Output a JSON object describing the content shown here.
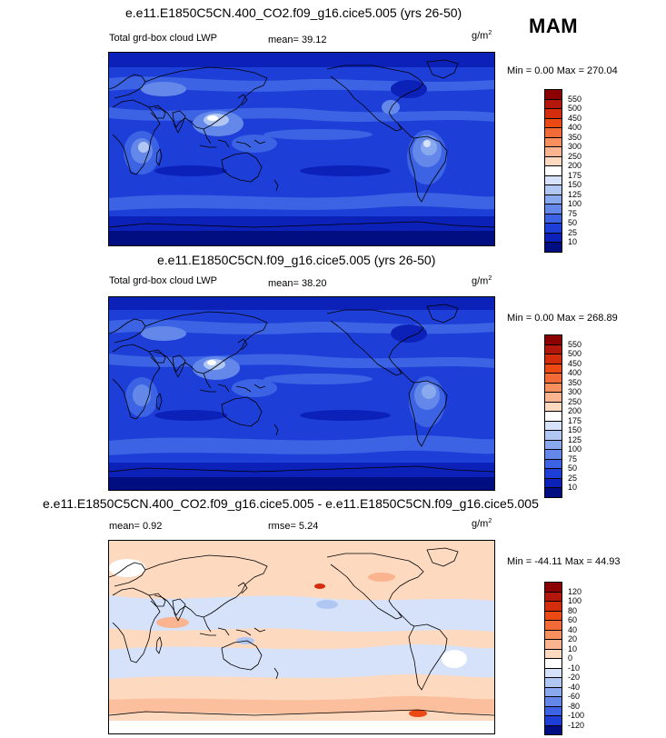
{
  "season": "MAM",
  "panels": [
    {
      "title": "e.e11.E1850C5CN.400_CO2.f09_g16.cice5.005 (yrs 26-50)",
      "left_label": "Total grd-box cloud LWP",
      "center_label": "mean=  39.12",
      "units": "g/m",
      "units_exp": "2",
      "minmax": "Min =   0.00 Max = 270.04",
      "colorbar": {
        "labels": [
          "550",
          "500",
          "450",
          "400",
          "350",
          "300",
          "250",
          "200",
          "175",
          "150",
          "125",
          "100",
          "75",
          "50",
          "25",
          "10"
        ],
        "colors": [
          "#8b0000",
          "#b3160a",
          "#d42d0d",
          "#ec4a14",
          "#f26a38",
          "#f78f5e",
          "#fab48f",
          "#fdd9c0",
          "#ffffff",
          "#d6e2fa",
          "#b0c7f4",
          "#89a9ef",
          "#6488ea",
          "#3b63e3",
          "#1d3fd8",
          "#0b21b8",
          "#000e82"
        ]
      },
      "palette": "lwp"
    },
    {
      "title": "e.e11.E1850C5CN.f09_g16.cice5.005 (yrs 26-50)",
      "left_label": "Total grd-box cloud LWP",
      "center_label": "mean=  38.20",
      "units": "g/m",
      "units_exp": "2",
      "minmax": "Min =   0.00 Max = 268.89",
      "colorbar": {
        "labels": [
          "550",
          "500",
          "450",
          "400",
          "350",
          "300",
          "250",
          "200",
          "175",
          "150",
          "125",
          "100",
          "75",
          "50",
          "25",
          "10"
        ],
        "colors": [
          "#8b0000",
          "#b3160a",
          "#d42d0d",
          "#ec4a14",
          "#f26a38",
          "#f78f5e",
          "#fab48f",
          "#fdd9c0",
          "#ffffff",
          "#d6e2fa",
          "#b0c7f4",
          "#89a9ef",
          "#6488ea",
          "#3b63e3",
          "#1d3fd8",
          "#0b21b8",
          "#000e82"
        ]
      },
      "palette": "lwp"
    },
    {
      "title": "e.e11.E1850C5CN.400_CO2.f09_g16.cice5.005 - e.e11.E1850C5CN.f09_g16.cice5.005",
      "left_label": "mean=   0.92",
      "center_label": "rmse=   5.24",
      "units": "g/m",
      "units_exp": "2",
      "minmax": "Min = -44.11 Max =  44.93",
      "colorbar": {
        "labels": [
          "120",
          "100",
          "80",
          "60",
          "40",
          "20",
          "10",
          "0",
          "-10",
          "-20",
          "-40",
          "-60",
          "-80",
          "-100",
          "-120"
        ],
        "colors": [
          "#8b0000",
          "#b3160a",
          "#d42d0d",
          "#ec4a14",
          "#f26a38",
          "#f78f5e",
          "#fab48f",
          "#fdd9c0",
          "#ffffff",
          "#d6e2fa",
          "#b0c7f4",
          "#89a9ef",
          "#6488ea",
          "#3b63e3",
          "#1d3fd8",
          "#000e82"
        ]
      },
      "palette": "diff"
    }
  ]
}
